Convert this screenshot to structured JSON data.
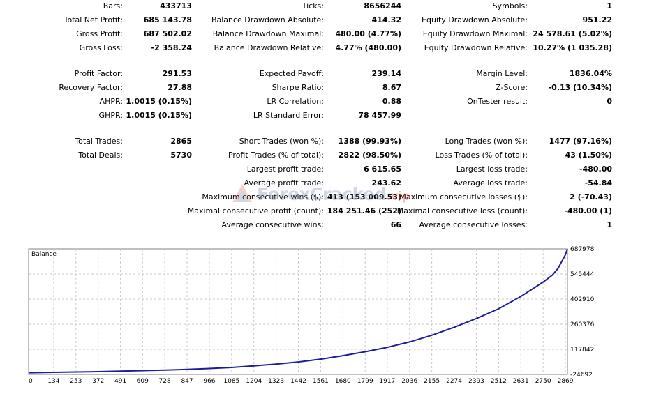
{
  "stats": [
    {
      "label": "Bars:",
      "value": "433713"
    },
    {
      "label": "Total Net Profit:",
      "value": "685 143.78"
    },
    {
      "label": "Gross Profit:",
      "value": "687 502.02"
    },
    {
      "label": "Gross Loss:",
      "value": "-2 358.24"
    },
    {
      "label": "Profit Factor:",
      "value": "291.53"
    },
    {
      "label": "Recovery Factor:",
      "value": "27.88"
    },
    {
      "label": "AHPR:",
      "value": "1.0015 (0.15%)"
    },
    {
      "label": "GHPR:",
      "value": "1.0015 (0.15%)"
    },
    {
      "label": "Total Trades:",
      "value": "2865"
    },
    {
      "label": "Total Deals:",
      "value": "5730"
    },
    {
      "label": "Ticks:",
      "value": "8656244"
    },
    {
      "label": "Balance Drawdown Absolute:",
      "value": "414.32"
    },
    {
      "label": "Balance Drawdown Maximal:",
      "value": "480.00 (4.77%)"
    },
    {
      "label": "Balance Drawdown Relative:",
      "value": "4.77% (480.00)"
    },
    {
      "label": "Expected Payoff:",
      "value": "239.14"
    },
    {
      "label": "Sharpe Ratio:",
      "value": "8.67"
    },
    {
      "label": "LR Correlation:",
      "value": "0.88"
    },
    {
      "label": "LR Standard Error:",
      "value": "78 457.99"
    },
    {
      "label": "Short Trades (won %):",
      "value": "1388 (99.93%)"
    },
    {
      "label": "Profit Trades (% of total):",
      "value": "2822 (98.50%)"
    },
    {
      "label": "Largest profit trade:",
      "value": "6 615.65"
    },
    {
      "label": "Average profit trade:",
      "value": "243.62"
    },
    {
      "label": "Maximum consecutive wins ($):",
      "value": "413 (153 009.53)"
    },
    {
      "label": "Maximal consecutive profit (count):",
      "value": "184 251.46 (252)"
    },
    {
      "label": "Average consecutive wins:",
      "value": "66"
    },
    {
      "label": "Symbols:",
      "value": "1"
    },
    {
      "label": "Equity Drawdown Absolute:",
      "value": "951.22"
    },
    {
      "label": "Equity Drawdown Maximal:",
      "value": "24 578.61 (5.02%)"
    },
    {
      "label": "Equity Drawdown Relative:",
      "value": "10.27% (1 035.28)"
    },
    {
      "label": "Margin Level:",
      "value": "1836.04%"
    },
    {
      "label": "Z-Score:",
      "value": "-0.13 (10.34%)"
    },
    {
      "label": "OnTester result:",
      "value": "0"
    },
    {
      "label": "Long Trades (won %):",
      "value": "1477 (97.16%)"
    },
    {
      "label": "Loss Trades (% of total):",
      "value": "43 (1.50%)"
    },
    {
      "label": "Largest loss trade:",
      "value": "-480.00"
    },
    {
      "label": "Average loss trade:",
      "value": "-54.84"
    },
    {
      "label": "Maximum consecutive losses ($):",
      "value": "2 (-70.43)"
    },
    {
      "label": "Maximal consecutive loss (count):",
      "value": "-480.00 (1)"
    },
    {
      "label": "Average consecutive losses:",
      "value": "1"
    }
  ],
  "watermark": {
    "text": "ForexCracked",
    "suffix": ".vip"
  },
  "colors": {
    "line": "#1c1c9c",
    "grid": "#c8c8c8",
    "frame": "#808080"
  },
  "chart_data": {
    "type": "line",
    "title": "Balance",
    "x": [
      0,
      134,
      253,
      372,
      491,
      609,
      728,
      847,
      966,
      1085,
      1204,
      1323,
      1442,
      1561,
      1680,
      1799,
      1917,
      2036,
      2155,
      2274,
      2393,
      2512,
      2631,
      2750,
      2800,
      2830,
      2869,
      2880
    ],
    "series": [
      {
        "values": [
          -15000,
          -13000,
          -11000,
          -9000,
          -6000,
          -3000,
          0,
          4000,
          9000,
          15000,
          24000,
          34000,
          46000,
          62000,
          82000,
          104000,
          129000,
          160000,
          198000,
          243000,
          293000,
          348000,
          418000,
          500000,
          540000,
          578000,
          655000,
          687978
        ]
      }
    ],
    "xticks": [
      0,
      134,
      253,
      372,
      491,
      609,
      728,
      847,
      966,
      1085,
      1204,
      1323,
      1442,
      1561,
      1680,
      1799,
      1917,
      2036,
      2155,
      2274,
      2393,
      2512,
      2631,
      2750,
      2869
    ],
    "yticks": [
      "687978",
      "545444",
      "402910",
      "260376",
      "117842",
      "-24692"
    ],
    "xlim": [
      0,
      2880
    ],
    "ylim": [
      -24692,
      687978
    ],
    "grid": true,
    "legend": "none"
  }
}
